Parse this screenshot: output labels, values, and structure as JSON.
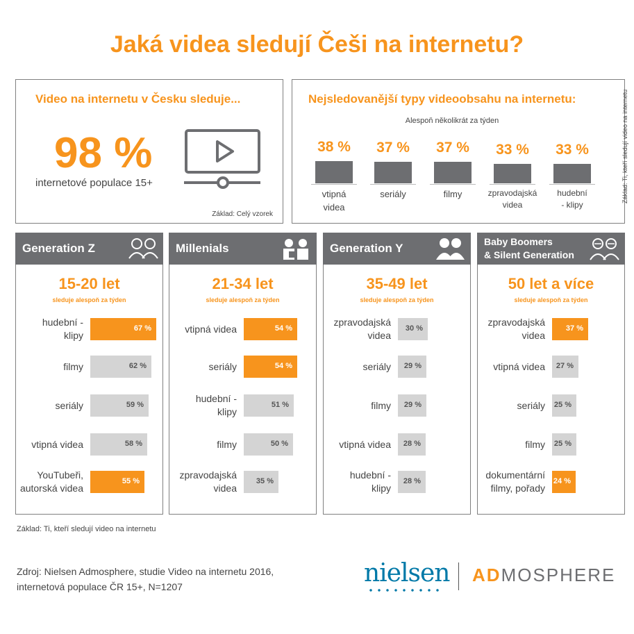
{
  "title": "Jaká videa sledují Češi na internetu?",
  "reach_panel": {
    "title": "Video na internetu v Česku sleduje...",
    "value": "98 %",
    "caption": "internetové populace 15+",
    "base": "Základ: Celý vzorek",
    "icon": "video-player-icon"
  },
  "top_panel": {
    "title": "Nejsledovanější typy videoobsahu na internetu:",
    "subtitle": "Alespoň několikrát za týden",
    "side_note": "Základ: Ti, kteří sledují video na internetu"
  },
  "colors": {
    "accent": "#f7941d",
    "dark_bar": "#6d6e71",
    "light_bar": "#d4d4d4",
    "border": "#7f7f7f"
  },
  "chart_data": [
    {
      "type": "bar",
      "title": "Nejsledovanější typy videoobsahu na internetu:",
      "subtitle": "Alespoň několikrát za týden",
      "categories": [
        "vtipná videa",
        "seriály",
        "filmy",
        "zpravodajská videa",
        "hudební - klipy"
      ],
      "labels_display": [
        [
          "vtipná",
          "videa"
        ],
        [
          "seriály"
        ],
        [
          "filmy"
        ],
        [
          "zpravodajská",
          "videa"
        ],
        [
          "hudební",
          "- klipy"
        ]
      ],
      "values": [
        38,
        37,
        37,
        33,
        33
      ],
      "value_labels": [
        "38 %",
        "37 %",
        "37 %",
        "33 %",
        "33 %"
      ],
      "ylim": [
        0,
        100
      ]
    },
    {
      "type": "bar",
      "group": "Generation Z",
      "age": "15-20 let",
      "subtitle": "sleduje alespoň za týden",
      "icon": "kids-icon",
      "categories": [
        [
          "hudební -",
          "klipy"
        ],
        [
          "filmy"
        ],
        [
          "seriály"
        ],
        [
          "vtipná videa"
        ],
        [
          "YouTubeři,",
          "autorská videa"
        ]
      ],
      "values": [
        67,
        62,
        59,
        58,
        55
      ],
      "value_labels": [
        "67 %",
        "62 %",
        "59 %",
        "58 %",
        "55 %"
      ],
      "highlight": [
        true,
        false,
        false,
        false,
        true
      ],
      "xlim": [
        0,
        100
      ]
    },
    {
      "type": "bar",
      "group": "Millenials",
      "age": "21-34 let",
      "subtitle": "sleduje alespoň za týden",
      "icon": "young-couple-icon",
      "categories": [
        [
          "vtipná videa"
        ],
        [
          "seriály"
        ],
        [
          "hudební -",
          "klipy"
        ],
        [
          "filmy"
        ],
        [
          "zpravodajská",
          "videa"
        ]
      ],
      "values": [
        54,
        54,
        51,
        50,
        35
      ],
      "value_labels": [
        "54 %",
        "54 %",
        "51 %",
        "50 %",
        "35 %"
      ],
      "highlight": [
        true,
        true,
        false,
        false,
        false
      ],
      "xlim": [
        0,
        100
      ]
    },
    {
      "type": "bar",
      "group": "Generation Y",
      "age": "35-49 let",
      "subtitle": "sleduje alespoň za týden",
      "icon": "adult-couple-icon",
      "categories": [
        [
          "zpravodajská",
          "videa"
        ],
        [
          "seriály"
        ],
        [
          "filmy"
        ],
        [
          "vtipná videa"
        ],
        [
          "hudební -",
          "klipy"
        ]
      ],
      "values": [
        30,
        29,
        29,
        28,
        28
      ],
      "value_labels": [
        "30 %",
        "29 %",
        "29 %",
        "28 %",
        "28 %"
      ],
      "highlight": [
        false,
        false,
        false,
        false,
        false
      ],
      "xlim": [
        0,
        100
      ]
    },
    {
      "type": "bar",
      "group": [
        "Baby Boomers",
        "& Silent Generation"
      ],
      "age": "50 let a více",
      "subtitle": "sleduje alespoň za týden",
      "icon": "senior-couple-icon",
      "categories": [
        [
          "zpravodajská",
          "videa"
        ],
        [
          "vtipná videa"
        ],
        [
          "seriály"
        ],
        [
          "filmy"
        ],
        [
          "dokumentární",
          "filmy, pořady"
        ]
      ],
      "values": [
        37,
        27,
        25,
        25,
        24
      ],
      "value_labels": [
        "37 %",
        "27 %",
        "25 %",
        "25 %",
        "24 %"
      ],
      "highlight": [
        true,
        false,
        false,
        false,
        true
      ],
      "xlim": [
        0,
        100
      ]
    }
  ],
  "footnote": "Základ: Ti, kteří sledují video na internetu",
  "source": [
    "Zdroj: Nielsen Admosphere, studie Video na internetu 2016,",
    "internetová populace ČR 15+, N=1207"
  ],
  "logos": {
    "nielsen": "nielsen",
    "admosphere_ad": "AD",
    "admosphere_rest": "MOSPHERE"
  }
}
